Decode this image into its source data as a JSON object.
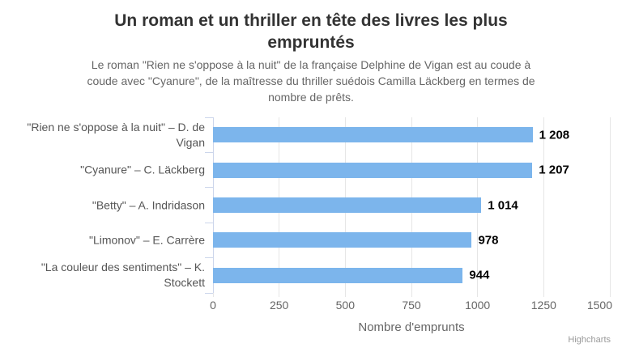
{
  "title": "Un roman et un thriller en tête des livres les plus\nempruntés",
  "subtitle": "Le roman \"Rien ne s'oppose à la nuit\" de la française Delphine de Vigan est au coude à\ncoude avec \"Cyanure\", de la maîtresse du thriller suédois Camilla Läckberg en termes de\nnombre de prêts.",
  "credit": "Highcharts",
  "colors": {
    "bar": "#7cb5ec",
    "grid": "#e6e6e6",
    "axis_line": "#ccd6eb",
    "title": "#333333",
    "subtitle": "#666666",
    "category_label": "#555555",
    "tick_label": "#666666",
    "data_label": "#000000",
    "credit": "#999999",
    "background": "#ffffff"
  },
  "chart_data": {
    "type": "bar",
    "orientation": "horizontal",
    "title": "Un roman et un thriller en tête des livres les plus empruntés",
    "subtitle": "Le roman \"Rien ne s'oppose à la nuit\" de la française Delphine de Vigan est au coude à coude avec \"Cyanure\", de la maîtresse du thriller suédois Camilla Läckberg en termes de nombre de prêts.",
    "categories": [
      "\"Rien ne s'oppose à la nuit\" – D. de\nVigan",
      "\"Cyanure\" – C. Läckberg",
      "\"Betty\" – A. Indridason",
      "\"Limonov\" – E. Carrère",
      "\"La couleur des sentiments\" – K.\nStockett"
    ],
    "values": [
      1208,
      1207,
      1014,
      978,
      944
    ],
    "value_labels": [
      "1 208",
      "1 207",
      "1 014",
      "978",
      "944"
    ],
    "xlabel": "Nombre d'emprunts",
    "ylabel": "",
    "xticks": [
      0,
      250,
      500,
      750,
      1000,
      1250,
      1500
    ],
    "xtick_labels": [
      "0",
      "250",
      "500",
      "750",
      "1000",
      "1250",
      "1500"
    ],
    "xlim": [
      0,
      1500
    ],
    "grid": true,
    "legend": false
  }
}
